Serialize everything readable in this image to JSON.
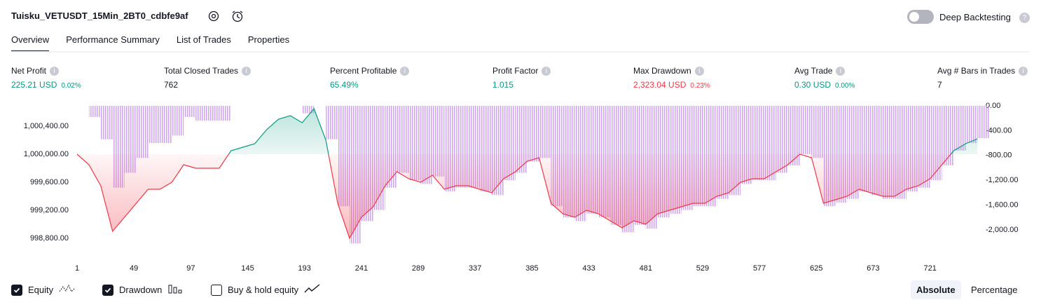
{
  "header": {
    "title": "Tuisku_VETUSDT_15Min_2BT0_cdbfe9af",
    "toggle_label": "Deep Backtesting"
  },
  "tabs": [
    "Overview",
    "Performance Summary",
    "List of Trades",
    "Properties"
  ],
  "metrics": [
    {
      "label": "Net Profit",
      "value": "225.21 USD",
      "percent": "0.02%",
      "color": "#089981"
    },
    {
      "label": "Total Closed Trades",
      "value": "762",
      "color": "#131722"
    },
    {
      "label": "Percent Profitable",
      "value": "65.49%",
      "color": "#089981"
    },
    {
      "label": "Profit Factor",
      "value": "1.015",
      "color": "#089981"
    },
    {
      "label": "Max Drawdown",
      "value": "2,323.04 USD",
      "percent": "0.23%",
      "color": "#f23645"
    },
    {
      "label": "Avg Trade",
      "value": "0.30 USD",
      "percent": "0.00%",
      "color": "#089981"
    },
    {
      "label": "Avg # Bars in Trades",
      "value": "7",
      "color": "#131722"
    }
  ],
  "chart_data": {
    "type": "line",
    "x": [
      1,
      11,
      21,
      31,
      41,
      51,
      61,
      71,
      81,
      91,
      101,
      111,
      121,
      131,
      141,
      151,
      161,
      171,
      181,
      191,
      201,
      211,
      221,
      231,
      241,
      251,
      261,
      271,
      281,
      291,
      301,
      311,
      321,
      331,
      341,
      351,
      361,
      371,
      381,
      391,
      401,
      411,
      421,
      431,
      441,
      451,
      461,
      471,
      481,
      491,
      501,
      511,
      521,
      531,
      541,
      551,
      561,
      571,
      581,
      591,
      601,
      611,
      621,
      631,
      641,
      651,
      661,
      671,
      681,
      691,
      701,
      711,
      721,
      731,
      741,
      751,
      761
    ],
    "series": [
      {
        "name": "Equity",
        "color": "#089981",
        "negative_color": "#f23645",
        "visible": true,
        "values": [
          1000000,
          999850,
          999550,
          998900,
          999100,
          999300,
          999500,
          999500,
          999600,
          999850,
          999800,
          999800,
          999800,
          1000050,
          1000100,
          1000150,
          1000350,
          1000500,
          1000550,
          1000450,
          1000650,
          1000200,
          999300,
          998800,
          999100,
          999250,
          999550,
          999750,
          999650,
          999600,
          999700,
          999500,
          999550,
          999550,
          999500,
          999450,
          999650,
          999750,
          999900,
          999950,
          999300,
          999150,
          999100,
          999200,
          999150,
          999050,
          998950,
          999050,
          999000,
          999150,
          999200,
          999250,
          999300,
          999300,
          999400,
          999450,
          999600,
          999650,
          999650,
          999750,
          999850,
          1000000,
          999950,
          999300,
          999350,
          999400,
          999500,
          999450,
          999400,
          999400,
          999500,
          999550,
          999650,
          999850,
          1000050,
          1000150,
          1000220
        ]
      },
      {
        "name": "Drawdown",
        "type": "bar",
        "axis": "y2",
        "color": "#d1a6ee",
        "visible": true,
        "values": [
          0,
          -180,
          -540,
          -1320,
          -1080,
          -840,
          -600,
          -600,
          -480,
          -180,
          -240,
          -240,
          -240,
          0,
          0,
          0,
          0,
          0,
          0,
          -120,
          0,
          -540,
          -1620,
          -2220,
          -1860,
          -1680,
          -1320,
          -1080,
          -1200,
          -1260,
          -1140,
          -1380,
          -1320,
          -1320,
          -1380,
          -1440,
          -1200,
          -1080,
          -900,
          -840,
          -1620,
          -1800,
          -1860,
          -1740,
          -1800,
          -1920,
          -2040,
          -1920,
          -1980,
          -1800,
          -1740,
          -1680,
          -1620,
          -1620,
          -1500,
          -1440,
          -1260,
          -1200,
          -1200,
          -1080,
          -960,
          -780,
          -840,
          -1620,
          -1560,
          -1500,
          -1380,
          -1440,
          -1500,
          -1500,
          -1380,
          -1320,
          -1200,
          -960,
          -720,
          -600,
          -520
        ]
      }
    ],
    "baseline": 1000000,
    "xlim": [
      1,
      762
    ],
    "xticks": [
      1,
      49,
      97,
      145,
      193,
      241,
      289,
      337,
      385,
      433,
      481,
      529,
      577,
      625,
      673,
      721
    ],
    "ylim": [
      998620,
      1000690
    ],
    "yticks": [
      {
        "value": 998800,
        "label": "998,800.00"
      },
      {
        "value": 999200,
        "label": "999,200.00"
      },
      {
        "value": 999600,
        "label": "999,600.00"
      },
      {
        "value": 1000000,
        "label": "1,000,000.00"
      },
      {
        "value": 1000400,
        "label": "1,000,400.00"
      }
    ],
    "y2lim": [
      -2340,
      0
    ],
    "y2ticks": [
      {
        "value": 0,
        "label": "0.00"
      },
      {
        "value": -400,
        "label": "-400.00"
      },
      {
        "value": -800,
        "label": "-800.00"
      },
      {
        "value": -1200,
        "label": "-1,200.00"
      },
      {
        "value": -1600,
        "label": "-1,600.00"
      },
      {
        "value": -2000,
        "label": "-2,000.00"
      }
    ]
  },
  "controls": {
    "buy_hold_label": "Buy & hold equity",
    "buy_hold_checked": false,
    "modes": [
      "Absolute",
      "Percentage"
    ],
    "selected_mode": 0
  }
}
